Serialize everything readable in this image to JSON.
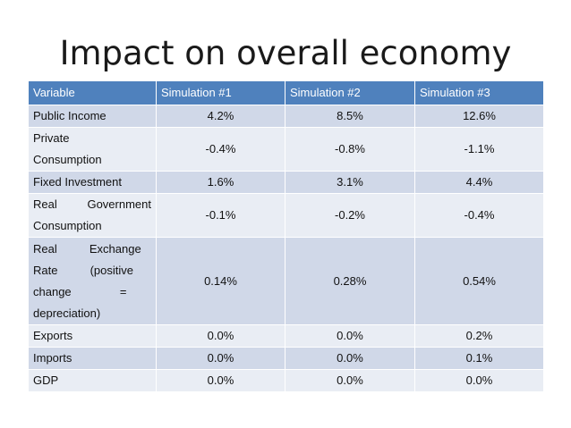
{
  "title": "Impact on overall economy",
  "table": {
    "headers": [
      "Variable",
      "Simulation #1",
      "Simulation #2",
      "Simulation #3"
    ],
    "rows": [
      {
        "variable_lines": [
          "Public Income"
        ],
        "values": [
          "4.2%",
          "8.5%",
          "12.6%"
        ]
      },
      {
        "variable_lines": [
          "Private",
          "Consumption"
        ],
        "values": [
          "-0.4%",
          "-0.8%",
          "-1.1%"
        ]
      },
      {
        "variable_lines": [
          "Fixed Investment"
        ],
        "values": [
          "1.6%",
          "3.1%",
          "4.4%"
        ]
      },
      {
        "variable_lines": [
          "Real   Government",
          "Consumption"
        ],
        "values": [
          "-0.1%",
          "-0.2%",
          "-0.4%"
        ]
      },
      {
        "variable_lines": [
          "Real          Exchange",
          "Rate          (positive",
          "change               =",
          "depreciation)"
        ],
        "values": [
          "0.14%",
          "0.28%",
          "0.54%"
        ]
      },
      {
        "variable_lines": [
          "Exports"
        ],
        "values": [
          "0.0%",
          "0.0%",
          "0.2%"
        ]
      },
      {
        "variable_lines": [
          "Imports"
        ],
        "values": [
          "0.0%",
          "0.0%",
          "0.1%"
        ]
      },
      {
        "variable_lines": [
          "GDP"
        ],
        "values": [
          "0.0%",
          "0.0%",
          "0.0%"
        ]
      }
    ]
  },
  "colors": {
    "header_bg": "#4f81bd",
    "row_odd_bg": "#d0d8e8",
    "row_even_bg": "#e9edf4"
  }
}
